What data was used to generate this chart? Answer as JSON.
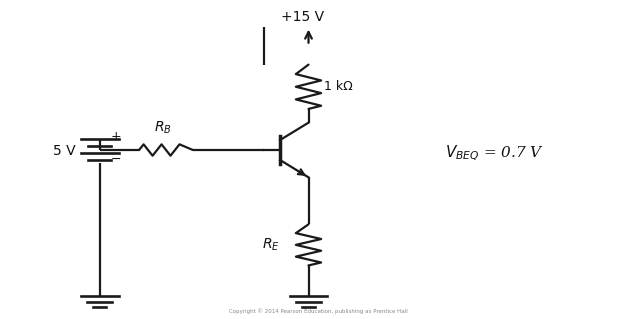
{
  "bg_color": "#ffffff",
  "line_color": "#1a1a1a",
  "line_width": 1.6,
  "title_text": "+15 V",
  "label_1kohm": "1 kΩ",
  "label_RB": "$R_B$",
  "label_RE": "$R_E$",
  "label_5V": "5 V",
  "label_VBEQ": "$V_{BEQ}$ = 0.7 V",
  "label_plus": "+",
  "label_minus": "−",
  "copyright": "Copyright © 2014 Pearson Education, publishing as Prentice Hall",
  "figsize": [
    6.36,
    3.19
  ],
  "dpi": 100
}
